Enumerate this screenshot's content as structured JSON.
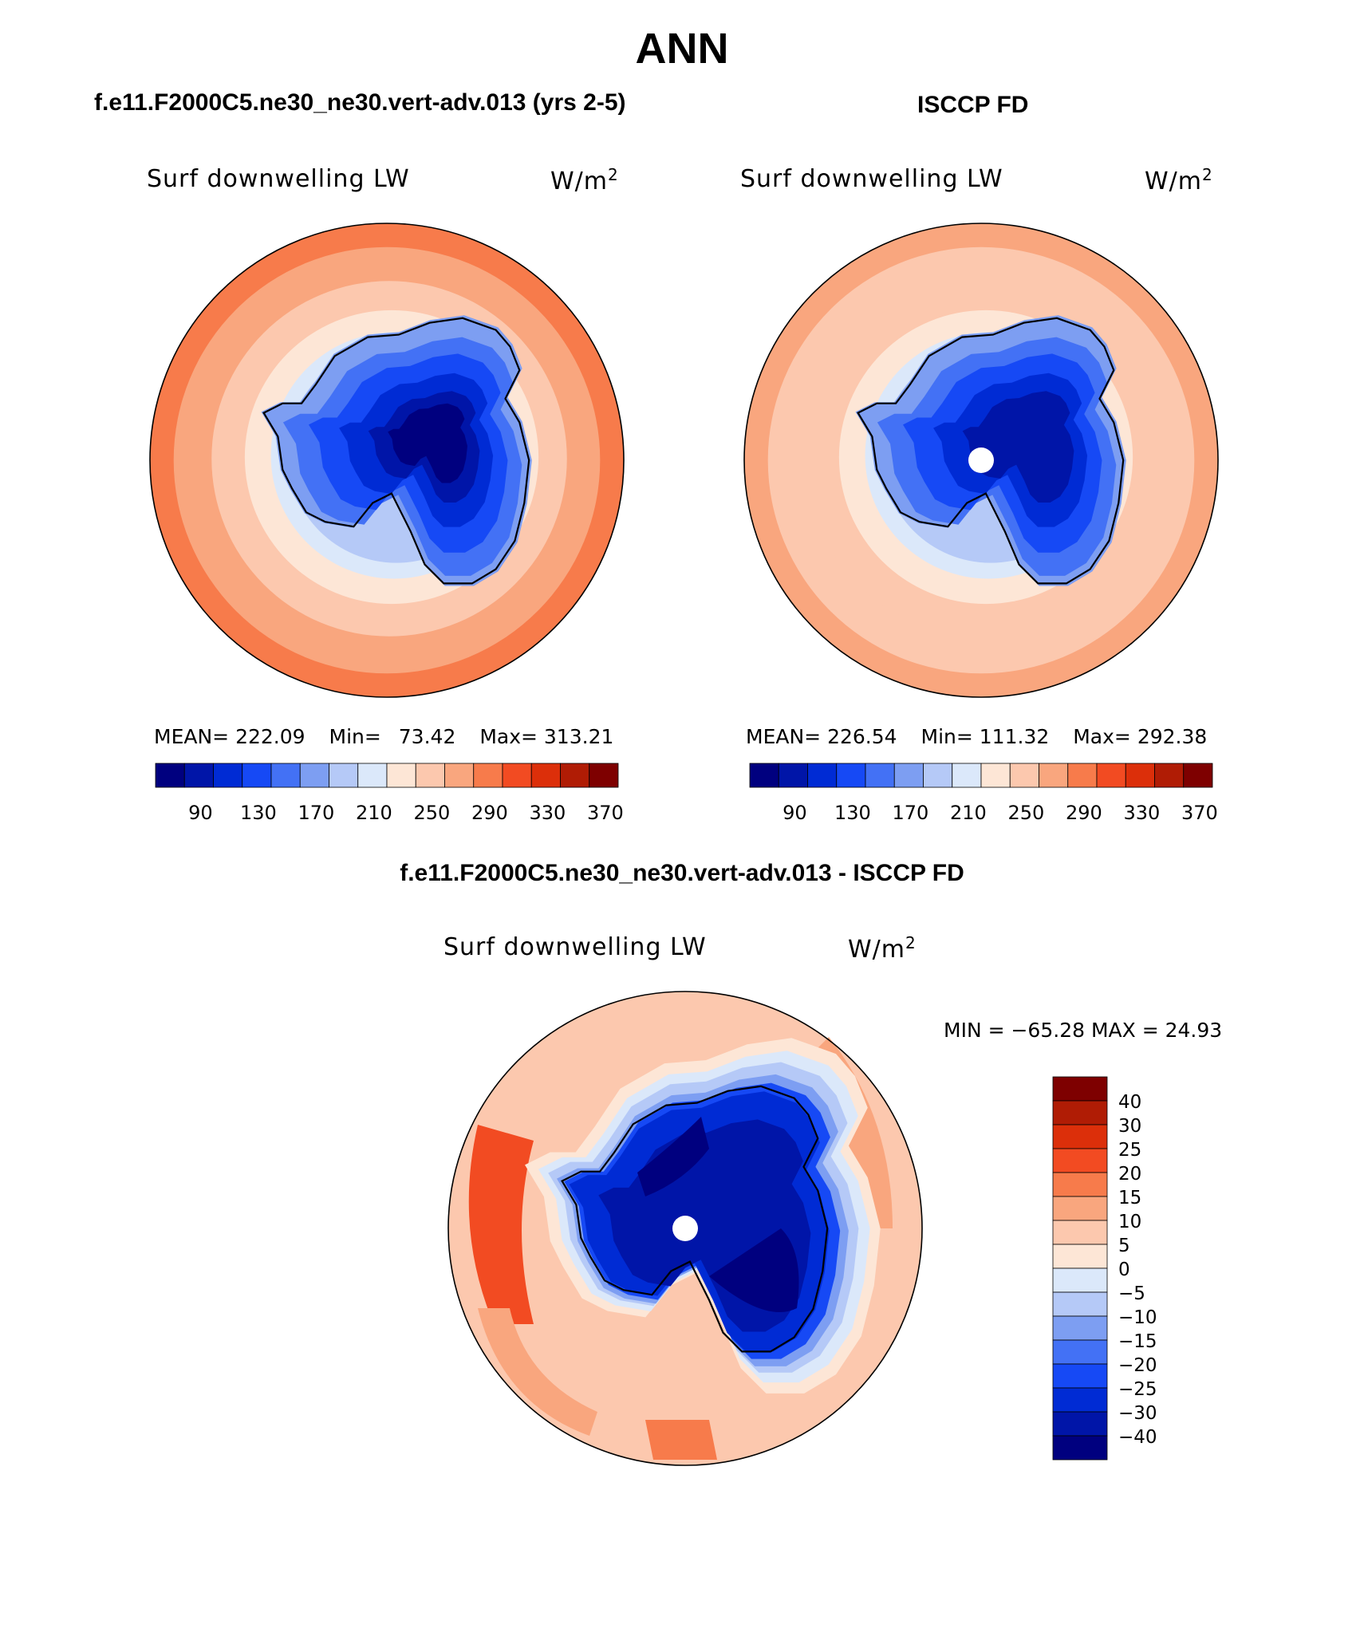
{
  "title": "ANN",
  "panels": [
    {
      "case_title": "f.e11.F2000C5.ne30_ne30.vert-adv.013 (yrs 2-5)",
      "variable_label": "Surf downwelling LW",
      "units_base": "W/m",
      "units_exp": "2",
      "mean_label": "MEAN=",
      "mean_value": "222.09",
      "min_label": "Min=",
      "min_value": "73.42",
      "max_label": "Max=",
      "max_value": "313.21",
      "colorbar_labels": [
        "90",
        "130",
        "170",
        "210",
        "250",
        "290",
        "330",
        "370"
      ],
      "has_pole_hole": false,
      "max_band": 11
    },
    {
      "case_title": "ISCCP FD",
      "variable_label": "Surf downwelling LW",
      "units_base": "W/m",
      "units_exp": "2",
      "mean_label": "MEAN=",
      "mean_value": "226.54",
      "min_label": "Min=",
      "min_value": "111.32",
      "max_label": "Max=",
      "max_value": "292.38",
      "colorbar_labels": [
        "90",
        "130",
        "170",
        "210",
        "250",
        "290",
        "330",
        "370"
      ],
      "has_pole_hole": true,
      "max_band": 10
    }
  ],
  "diff": {
    "case_title": "f.e11.F2000C5.ne30_ne30.vert-adv.013 - ISCCP FD",
    "variable_label": "Surf downwelling LW",
    "units_base": "W/m",
    "units_exp": "2",
    "minmax_text": "MIN = −65.28 MAX =  24.93",
    "colorbar_labels": [
      "40",
      "30",
      "25",
      "20",
      "15",
      "10",
      "5",
      "0",
      "−5",
      "−10",
      "−15",
      "−20",
      "−25",
      "−30",
      "−40"
    ],
    "has_pole_hole": true
  },
  "colors": {
    "abs_scale": [
      "#00007f",
      "#0015a8",
      "#002bd4",
      "#1649f5",
      "#4371f5",
      "#7d9ef2",
      "#b5c9f7",
      "#dbe8fa",
      "#fde6d6",
      "#fcc8ae",
      "#f9a67e",
      "#f77b4b",
      "#f24b22",
      "#dc2f0a",
      "#b01c05",
      "#7e0000"
    ],
    "diff_scale": [
      "#7e0000",
      "#b01c05",
      "#dc2f0a",
      "#f24b22",
      "#f77b4b",
      "#f9a67e",
      "#fcc8ae",
      "#fde6d6",
      "#dbe8fa",
      "#b5c9f7",
      "#7d9ef2",
      "#4371f5",
      "#1649f5",
      "#002bd4",
      "#0015a8",
      "#00007f"
    ],
    "coastline": "#000000"
  }
}
